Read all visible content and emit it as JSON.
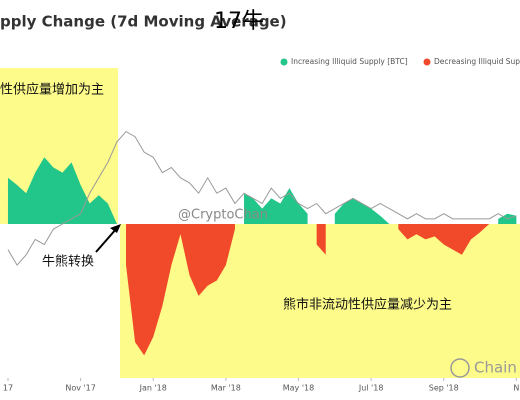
{
  "chart_data": {
    "type": "area",
    "title": "pply Change (7d Moving Average)",
    "title_note": "17牛",
    "x": [
      0,
      0.25,
      0.5,
      0.75,
      1,
      1.25,
      1.5,
      1.75,
      2,
      2.25,
      2.5,
      2.75,
      3,
      3.25,
      3.5,
      3.75,
      4,
      4.25,
      4.5,
      4.75,
      5,
      5.25,
      5.5,
      5.75,
      6,
      6.25,
      6.5,
      6.75,
      7,
      7.25,
      7.5,
      7.75,
      8,
      8.25,
      8.5,
      8.75,
      9,
      9.25,
      9.5,
      9.75,
      10,
      10.25,
      10.5,
      10.75,
      11,
      11.25,
      11.5,
      11.75,
      12,
      12.25,
      12.5,
      12.75,
      13,
      13.25,
      13.5,
      13.75,
      14
    ],
    "xlim": [
      -0.22,
      14.1
    ],
    "xticks": [
      {
        "value": 0,
        "label": "17"
      },
      {
        "value": 2,
        "label": "Nov '17"
      },
      {
        "value": 4,
        "label": "Jan '18"
      },
      {
        "value": 6,
        "label": "Mar '18"
      },
      {
        "value": 8,
        "label": "May '18"
      },
      {
        "value": 10,
        "label": "Jul '18"
      },
      {
        "value": 12,
        "label": "Sep '18"
      },
      {
        "value": 14,
        "label": "N"
      }
    ],
    "ylim": [
      -150,
      150
    ],
    "series": [
      {
        "name": "Increasing Illiquid Supply [BTC]",
        "color": "#22c58a",
        "values": [
          45,
          38,
          30,
          50,
          65,
          55,
          50,
          60,
          38,
          20,
          28,
          20,
          0,
          null,
          null,
          null,
          null,
          null,
          null,
          null,
          null,
          null,
          null,
          null,
          null,
          null,
          30,
          25,
          15,
          25,
          20,
          35,
          20,
          10,
          null,
          null,
          10,
          20,
          25,
          20,
          15,
          8,
          0,
          null,
          null,
          null,
          null,
          null,
          null,
          null,
          null,
          null,
          null,
          null,
          5,
          10,
          8
        ]
      },
      {
        "name": "Decreasing Illiquid Supply",
        "color": "#f04a2a",
        "values": [
          null,
          null,
          null,
          null,
          null,
          null,
          null,
          null,
          null,
          null,
          null,
          null,
          null,
          -40,
          -115,
          -128,
          -110,
          -80,
          -40,
          -10,
          -50,
          -70,
          -60,
          -55,
          -40,
          -5,
          null,
          null,
          null,
          null,
          null,
          null,
          null,
          null,
          -20,
          -30,
          null,
          null,
          null,
          null,
          null,
          null,
          null,
          -5,
          -15,
          -10,
          -15,
          -12,
          -20,
          -25,
          -30,
          -15,
          -8,
          0,
          null,
          null,
          null
        ]
      }
    ],
    "price_line": {
      "color": "#9a9a9a",
      "values": [
        -25,
        -40,
        -30,
        -15,
        -20,
        -5,
        0,
        5,
        10,
        30,
        45,
        60,
        80,
        90,
        85,
        70,
        65,
        50,
        55,
        45,
        40,
        30,
        45,
        30,
        35,
        20,
        30,
        25,
        20,
        35,
        25,
        30,
        20,
        15,
        20,
        10,
        15,
        20,
        25,
        20,
        15,
        20,
        15,
        10,
        5,
        10,
        5,
        5,
        10,
        5,
        5,
        5,
        5,
        5,
        10,
        5,
        8
      ]
    },
    "annotations": [
      "性供应量增加为主",
      "牛熊转换",
      "熊市非流动性供应量减少为主"
    ],
    "watermarks": [
      "@CryptoChan",
      "Chain"
    ]
  }
}
